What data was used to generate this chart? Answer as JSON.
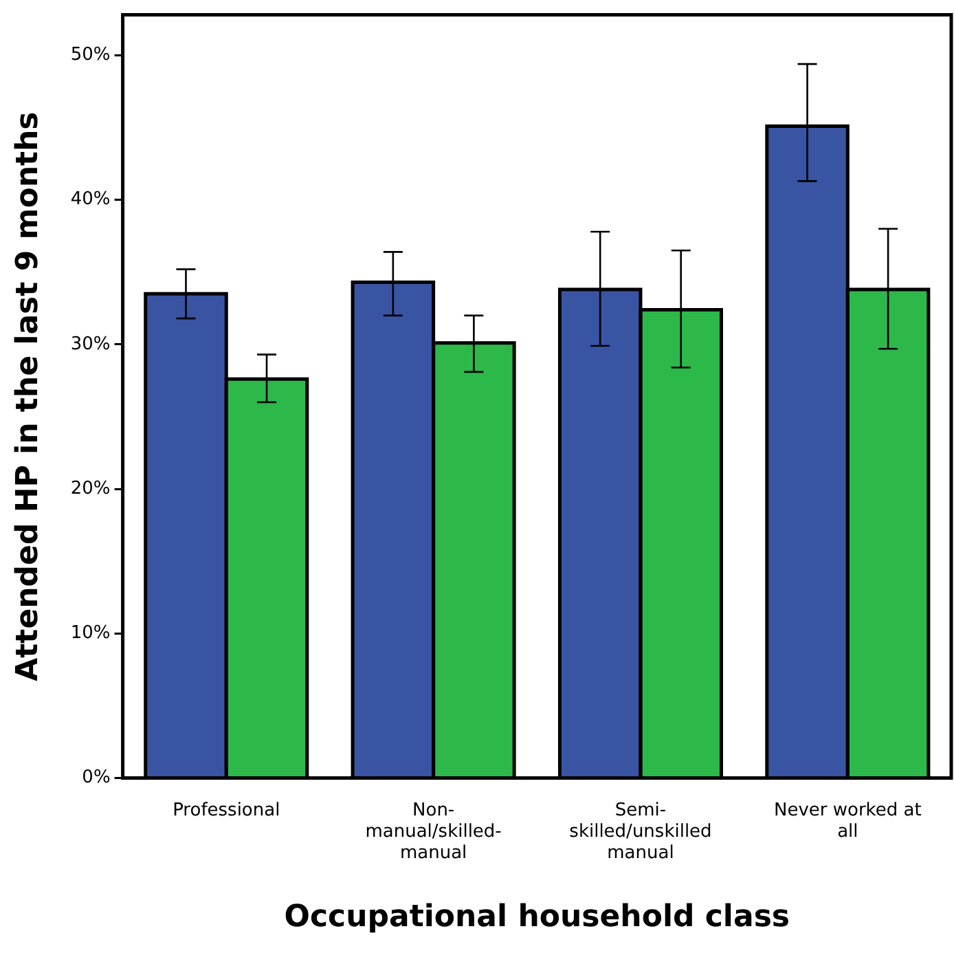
{
  "chart_data": {
    "type": "bar",
    "xlabel": "Occupational household class",
    "ylabel": "Attended HP in the last 9 months",
    "categories": [
      "Professional",
      "Non-manual/skilled-manual",
      "Semi-skilled/unskilled manual",
      "Never worked at all"
    ],
    "series": [
      {
        "color": "#3a54a4",
        "values": [
          33.5,
          34.3,
          33.8,
          45.1
        ],
        "errors": [
          [
            31.8,
            35.2
          ],
          [
            32.0,
            36.4
          ],
          [
            29.9,
            37.8
          ],
          [
            41.3,
            49.4
          ]
        ]
      },
      {
        "color": "#2db84a",
        "values": [
          27.6,
          30.1,
          32.4,
          33.8
        ],
        "errors": [
          [
            26.0,
            29.3
          ],
          [
            28.1,
            32.0
          ],
          [
            28.4,
            36.5
          ],
          [
            29.7,
            38.0
          ]
        ]
      }
    ],
    "ylim": [
      0,
      52.8
    ],
    "yticks": [
      {
        "value": 0,
        "label": "0%"
      },
      {
        "value": 10,
        "label": "10%"
      },
      {
        "value": 20,
        "label": "20%"
      },
      {
        "value": 30,
        "label": "30%"
      },
      {
        "value": 40,
        "label": "40%"
      },
      {
        "value": 50,
        "label": "50%"
      }
    ],
    "grid": false,
    "legend": false
  }
}
